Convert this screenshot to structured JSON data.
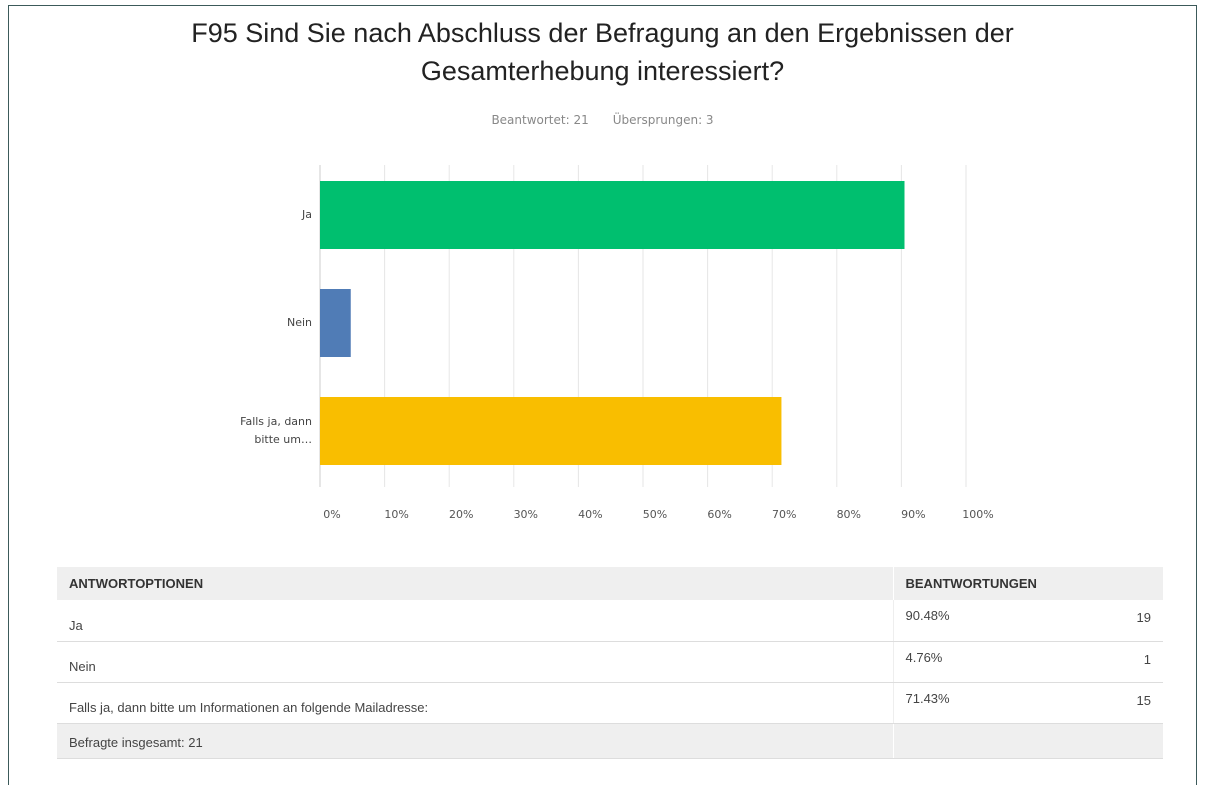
{
  "chart_data": {
    "type": "bar",
    "orientation": "horizontal",
    "title": "F95 Sind Sie nach Abschluss der Befragung an den Ergebnissen der Gesamterhebung interessiert?",
    "subtitle": [
      "Beantwortet: 21",
      "Übersprungen: 3"
    ],
    "categories": [
      "Ja",
      "Nein",
      "Falls ja, dann bitte um…"
    ],
    "values": [
      90.48,
      4.76,
      71.43
    ],
    "colors": [
      "#00bf6f",
      "#507cb6",
      "#f9be00"
    ],
    "xlim": [
      0,
      100
    ],
    "xticks": [
      {
        "value": 0,
        "label": "0%"
      },
      {
        "value": 10,
        "label": "10%"
      },
      {
        "value": 20,
        "label": "20%"
      },
      {
        "value": 30,
        "label": "30%"
      },
      {
        "value": 40,
        "label": "40%"
      },
      {
        "value": 50,
        "label": "50%"
      },
      {
        "value": 60,
        "label": "60%"
      },
      {
        "value": 70,
        "label": "70%"
      },
      {
        "value": 80,
        "label": "80%"
      },
      {
        "value": 90,
        "label": "90%"
      },
      {
        "value": 100,
        "label": "100%"
      }
    ],
    "grid": true
  },
  "table": {
    "header": [
      "ANTWORTOPTIONEN",
      "BEANTWORTUNGEN"
    ],
    "rows": [
      [
        "Ja",
        "90.48%",
        "19"
      ],
      [
        "Nein",
        "4.76%",
        "1"
      ],
      [
        "Falls ja, dann bitte um Informationen an folgende Mailadresse:",
        "71.43%",
        "15"
      ]
    ],
    "footer": "Befragte insgesamt: 21"
  }
}
